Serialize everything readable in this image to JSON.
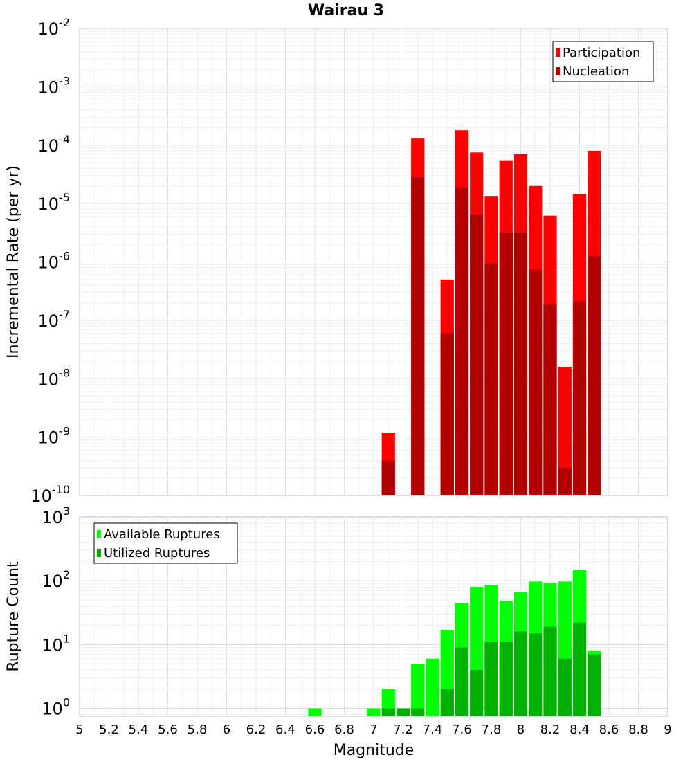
{
  "chart_data": [
    {
      "type": "bar",
      "title": "Wairau 3",
      "xlabel": "",
      "ylabel": "Incremental Rate (per yr)",
      "y_scale": "log",
      "ylim": [
        1e-10,
        0.01
      ],
      "y_tick_exponents": [
        -10,
        -9,
        -8,
        -7,
        -6,
        -5,
        -4,
        -3,
        -2
      ],
      "grid": true,
      "legend_position": "top-right",
      "bar_width": 0.1,
      "x": [
        7.1,
        7.3,
        7.5,
        7.6,
        7.7,
        7.8,
        7.9,
        8.0,
        8.1,
        8.2,
        8.3,
        8.4,
        8.5
      ],
      "series": [
        {
          "name": "Participation",
          "color": "#ff0000",
          "values": [
            1.2e-09,
            0.00013,
            5e-07,
            0.00018,
            7.5e-05,
            1.35e-05,
            5.5e-05,
            7e-05,
            2e-05,
            6.2e-06,
            1.6e-08,
            1.45e-05,
            8e-05
          ]
        },
        {
          "name": "Nucleation",
          "color": "#b20000",
          "values": [
            4e-10,
            2.8e-05,
            6e-08,
            1.9e-05,
            6.5e-06,
            9.5e-07,
            3.2e-06,
            3.2e-06,
            7.5e-07,
            1.85e-07,
            3e-10,
            2.1e-07,
            1.25e-06
          ]
        }
      ]
    },
    {
      "type": "bar",
      "title": "",
      "xlabel": "Magnitude",
      "ylabel": "Rupture Count",
      "y_scale": "log",
      "ylim": [
        0.75,
        1000
      ],
      "y_tick_exponents": [
        0,
        1,
        2,
        3
      ],
      "grid": true,
      "legend_position": "top-left",
      "bar_width": 0.1,
      "xlim": [
        5,
        9
      ],
      "xticks": [
        "5",
        "5.2",
        "5.4",
        "5.6",
        "5.8",
        "6",
        "6.2",
        "6.4",
        "6.6",
        "6.8",
        "7",
        "7.2",
        "7.4",
        "7.6",
        "7.8",
        "8",
        "8.2",
        "8.4",
        "8.6",
        "8.8",
        "9"
      ],
      "x": [
        6.6,
        7.0,
        7.1,
        7.2,
        7.3,
        7.4,
        7.5,
        7.6,
        7.7,
        7.8,
        7.9,
        8.0,
        8.1,
        8.2,
        8.3,
        8.4,
        8.5
      ],
      "series": [
        {
          "name": "Available Ruptures",
          "color": "#00ff00",
          "values": [
            1,
            1,
            2,
            1,
            5,
            6,
            17,
            45,
            80,
            85,
            48,
            67,
            97,
            92,
            97,
            148,
            8
          ]
        },
        {
          "name": "Utilized Ruptures",
          "color": "#00b200",
          "values": [
            0,
            0,
            1,
            1,
            1,
            0,
            2,
            9,
            4,
            11,
            11,
            16,
            15,
            19,
            6,
            22,
            7
          ]
        }
      ]
    }
  ]
}
